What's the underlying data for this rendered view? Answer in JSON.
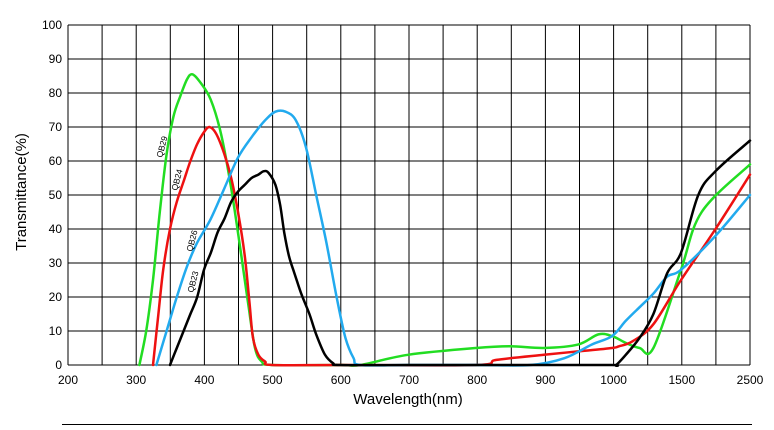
{
  "chart_data": {
    "type": "line",
    "ylabel": "Transmittance(%)",
    "xlabel": "Wavelength(nm)",
    "ylim": [
      0,
      100
    ],
    "yticks": [
      "0",
      "10",
      "20",
      "30",
      "40",
      "50",
      "60",
      "70",
      "80",
      "90",
      "100"
    ],
    "x_scale": "piecewise: 200–1000 nm linear, then 1000–2500 nm compressed",
    "xticks": [
      "200",
      "300",
      "400",
      "500",
      "600",
      "700",
      "800",
      "900",
      "1000",
      "1500",
      "2500"
    ],
    "grid": true,
    "series": [
      {
        "name": "QB29",
        "color": "#22dd22",
        "points": [
          [
            305,
            0
          ],
          [
            315,
            10
          ],
          [
            325,
            25
          ],
          [
            335,
            45
          ],
          [
            345,
            62
          ],
          [
            355,
            73
          ],
          [
            365,
            79
          ],
          [
            375,
            84
          ],
          [
            383,
            85.5
          ],
          [
            395,
            83
          ],
          [
            410,
            78
          ],
          [
            425,
            68
          ],
          [
            440,
            52
          ],
          [
            455,
            32
          ],
          [
            465,
            18
          ],
          [
            475,
            5
          ],
          [
            485,
            1
          ],
          [
            500,
            0
          ],
          [
            600,
            0
          ],
          [
            630,
            0
          ],
          [
            700,
            3
          ],
          [
            800,
            5
          ],
          [
            850,
            5.5
          ],
          [
            900,
            5
          ],
          [
            950,
            6
          ],
          [
            980,
            9
          ],
          [
            1000,
            8.5
          ],
          [
            1100,
            6.5
          ],
          [
            1200,
            5
          ],
          [
            1300,
            5
          ],
          [
            1500,
            28
          ],
          [
            1800,
            45
          ],
          [
            2500,
            59
          ]
        ]
      },
      {
        "name": "QB24",
        "color": "#ee1111",
        "points": [
          [
            325,
            0
          ],
          [
            333,
            15
          ],
          [
            340,
            28
          ],
          [
            350,
            40
          ],
          [
            360,
            48
          ],
          [
            370,
            54
          ],
          [
            380,
            60
          ],
          [
            390,
            65
          ],
          [
            400,
            68.5
          ],
          [
            408,
            70
          ],
          [
            418,
            68
          ],
          [
            430,
            62
          ],
          [
            440,
            55
          ],
          [
            450,
            45
          ],
          [
            460,
            32
          ],
          [
            467,
            18
          ],
          [
            472,
            8
          ],
          [
            480,
            3
          ],
          [
            490,
            1
          ],
          [
            500,
            0
          ],
          [
            600,
            0
          ],
          [
            800,
            0
          ],
          [
            830,
            1.5
          ],
          [
            900,
            3
          ],
          [
            950,
            4
          ],
          [
            1000,
            5
          ],
          [
            1050,
            5.5
          ],
          [
            1150,
            7
          ],
          [
            1300,
            12
          ],
          [
            1500,
            25
          ],
          [
            2000,
            40
          ],
          [
            2500,
            56
          ]
        ]
      },
      {
        "name": "QB26",
        "color": "#22aaee",
        "points": [
          [
            330,
            0
          ],
          [
            345,
            10
          ],
          [
            360,
            20
          ],
          [
            375,
            29
          ],
          [
            390,
            36
          ],
          [
            410,
            43
          ],
          [
            430,
            52
          ],
          [
            450,
            61
          ],
          [
            470,
            67
          ],
          [
            490,
            72
          ],
          [
            505,
            74.5
          ],
          [
            520,
            74.5
          ],
          [
            535,
            72
          ],
          [
            550,
            64
          ],
          [
            565,
            50
          ],
          [
            580,
            36
          ],
          [
            595,
            20
          ],
          [
            608,
            8
          ],
          [
            620,
            2
          ],
          [
            630,
            0
          ],
          [
            700,
            0
          ],
          [
            800,
            0
          ],
          [
            880,
            0
          ],
          [
            930,
            2
          ],
          [
            970,
            6
          ],
          [
            1000,
            8.5
          ],
          [
            1100,
            13
          ],
          [
            1200,
            17
          ],
          [
            1300,
            21
          ],
          [
            1400,
            26
          ],
          [
            1500,
            28
          ],
          [
            2000,
            38
          ],
          [
            2500,
            50
          ]
        ]
      },
      {
        "name": "QB23",
        "color": "#000000",
        "points": [
          [
            350,
            0
          ],
          [
            360,
            5
          ],
          [
            370,
            10
          ],
          [
            380,
            15
          ],
          [
            390,
            20
          ],
          [
            400,
            28
          ],
          [
            410,
            33
          ],
          [
            420,
            39
          ],
          [
            430,
            43
          ],
          [
            440,
            48
          ],
          [
            450,
            51
          ],
          [
            460,
            53
          ],
          [
            470,
            55
          ],
          [
            480,
            56
          ],
          [
            488,
            57
          ],
          [
            495,
            56.5
          ],
          [
            505,
            53
          ],
          [
            512,
            47
          ],
          [
            518,
            39
          ],
          [
            525,
            32
          ],
          [
            533,
            27
          ],
          [
            543,
            21
          ],
          [
            555,
            15
          ],
          [
            565,
            9
          ],
          [
            578,
            3
          ],
          [
            590,
            0.5
          ],
          [
            600,
            0
          ],
          [
            700,
            0
          ],
          [
            800,
            0
          ],
          [
            900,
            0
          ],
          [
            1000,
            0
          ],
          [
            1030,
            0
          ],
          [
            1100,
            3
          ],
          [
            1200,
            8
          ],
          [
            1300,
            15
          ],
          [
            1400,
            27
          ],
          [
            1500,
            33
          ],
          [
            1750,
            50
          ],
          [
            2000,
            57
          ],
          [
            2500,
            66
          ]
        ]
      }
    ]
  }
}
